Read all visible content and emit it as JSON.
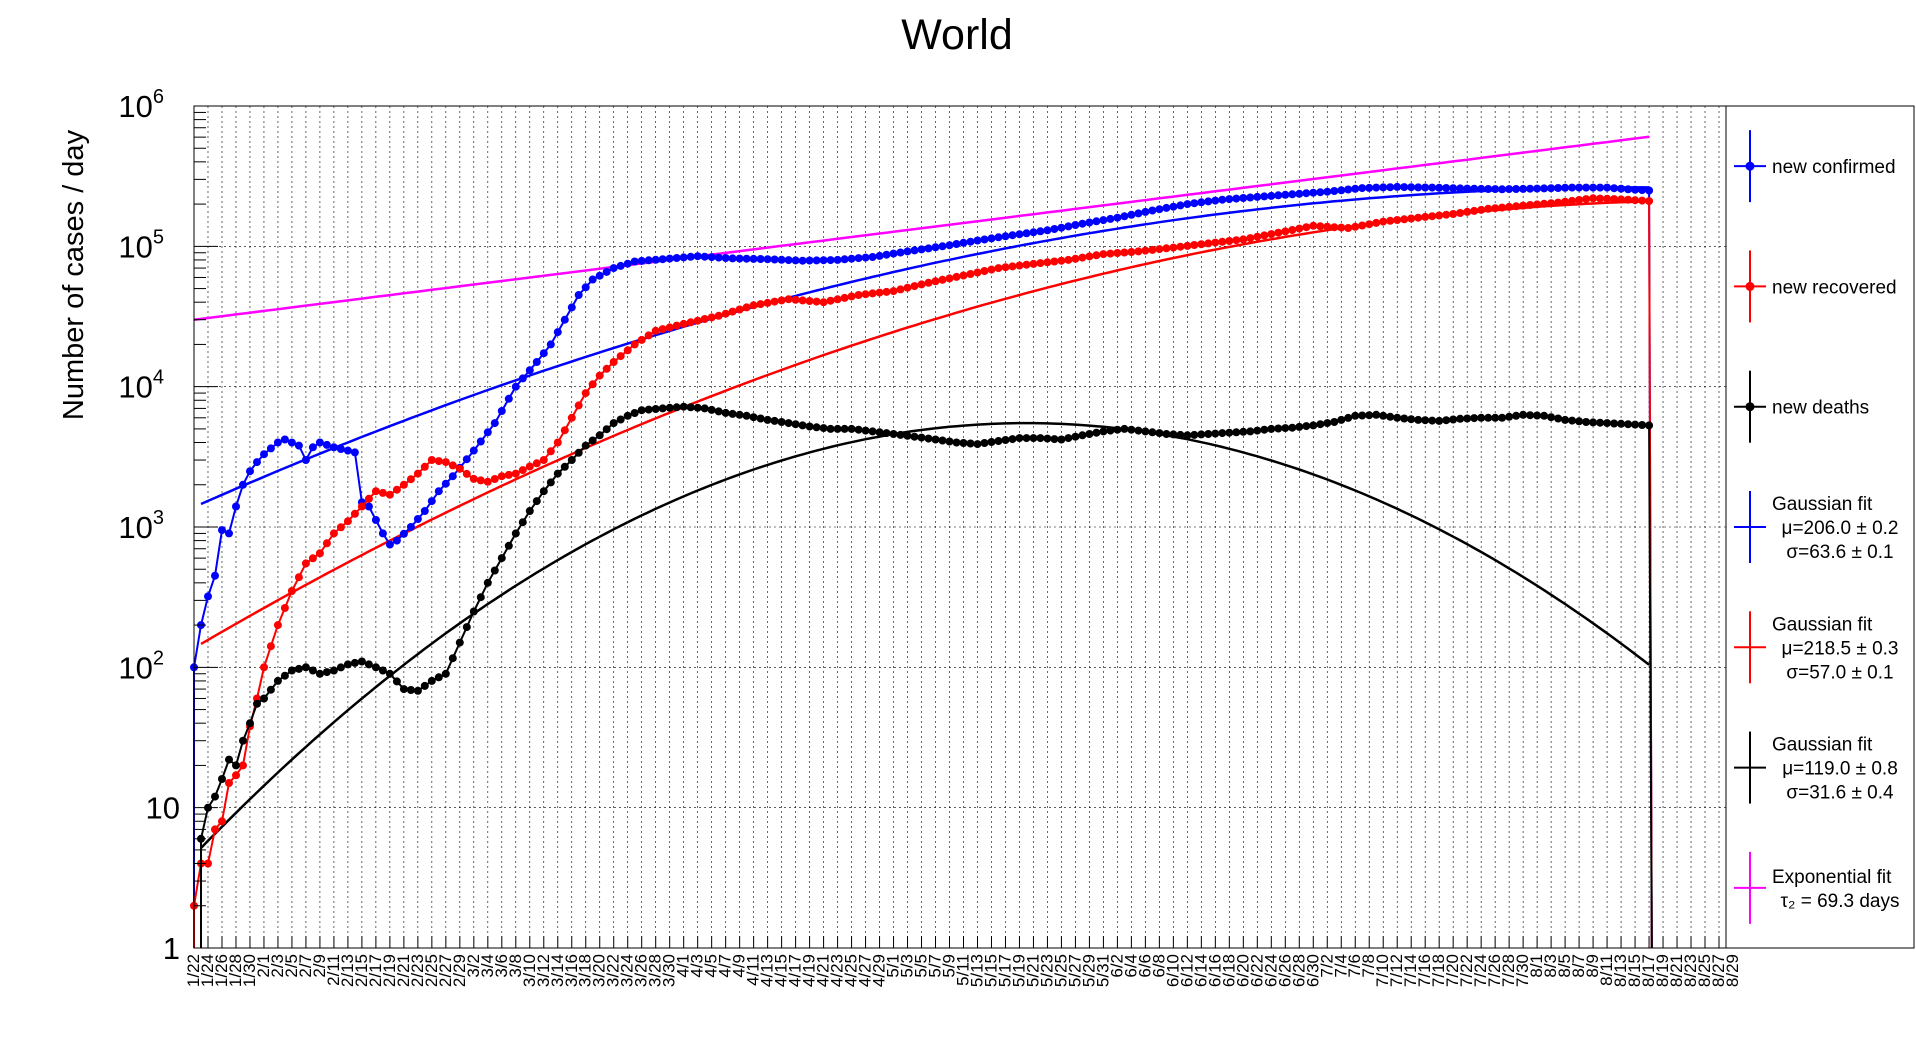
{
  "chart_data": {
    "type": "line",
    "title": "World",
    "ylabel": "Number of cases / day",
    "xlabel": "",
    "y_scale": "log",
    "ylim": [
      1,
      1000000
    ],
    "grid": true,
    "legend_position": "right",
    "y_ticks": [
      {
        "value": 1,
        "base": "1",
        "exp": ""
      },
      {
        "value": 10,
        "base": "10",
        "exp": ""
      },
      {
        "value": 100,
        "base": "10",
        "exp": "2"
      },
      {
        "value": 1000,
        "base": "10",
        "exp": "3"
      },
      {
        "value": 10000,
        "base": "10",
        "exp": "4"
      },
      {
        "value": 100000,
        "base": "10",
        "exp": "5"
      },
      {
        "value": 1000000,
        "base": "10",
        "exp": "6"
      }
    ],
    "x_tick_labels": [
      "1/22",
      "1/24",
      "1/26",
      "1/28",
      "1/30",
      "2/1",
      "2/3",
      "2/5",
      "2/7",
      "2/9",
      "2/11",
      "2/13",
      "2/15",
      "2/17",
      "2/19",
      "2/21",
      "2/23",
      "2/25",
      "2/27",
      "2/29",
      "3/2",
      "3/4",
      "3/6",
      "3/8",
      "3/10",
      "3/12",
      "3/14",
      "3/16",
      "3/18",
      "3/20",
      "3/22",
      "3/24",
      "3/26",
      "3/28",
      "3/30",
      "4/1",
      "4/3",
      "4/5",
      "4/7",
      "4/9",
      "4/11",
      "4/13",
      "4/15",
      "4/17",
      "4/19",
      "4/21",
      "4/23",
      "4/25",
      "4/27",
      "4/29",
      "5/1",
      "5/3",
      "5/5",
      "5/7",
      "5/9",
      "5/11",
      "5/13",
      "5/15",
      "5/17",
      "5/19",
      "5/21",
      "5/23",
      "5/25",
      "5/27",
      "5/29",
      "5/31",
      "6/2",
      "6/4",
      "6/6",
      "6/8",
      "6/10",
      "6/12",
      "6/14",
      "6/16",
      "6/18",
      "6/20",
      "6/22",
      "6/24",
      "6/26",
      "6/28",
      "6/30",
      "7/2",
      "7/4",
      "7/6",
      "7/8",
      "7/10",
      "7/12",
      "7/14",
      "7/16",
      "7/18",
      "7/20",
      "7/22",
      "7/24",
      "7/26",
      "7/28",
      "7/30",
      "8/1",
      "8/3",
      "8/5",
      "8/7",
      "8/9",
      "8/11",
      "8/13",
      "8/15",
      "8/17",
      "8/19",
      "8/21",
      "8/23",
      "8/25",
      "8/27",
      "8/29"
    ],
    "x_range_days": [
      0,
      219
    ],
    "series": [
      {
        "name": "new confirmed",
        "color": "#0000ff",
        "kind": "data",
        "anchors": [
          [
            0,
            100
          ],
          [
            1,
            200
          ],
          [
            2,
            320
          ],
          [
            3,
            450
          ],
          [
            4,
            950
          ],
          [
            5,
            900
          ],
          [
            6,
            1400
          ],
          [
            7,
            2000
          ],
          [
            8,
            2500
          ],
          [
            9,
            2900
          ],
          [
            10,
            3300
          ],
          [
            12,
            4000
          ],
          [
            13,
            4200
          ],
          [
            15,
            3800
          ],
          [
            16,
            3000
          ],
          [
            17,
            3700
          ],
          [
            18,
            4000
          ],
          [
            20,
            3700
          ],
          [
            22,
            3500
          ],
          [
            23,
            3400
          ],
          [
            24,
            1500
          ],
          [
            25,
            1400
          ],
          [
            27,
            900
          ],
          [
            28,
            750
          ],
          [
            29,
            800
          ],
          [
            31,
            1000
          ],
          [
            33,
            1300
          ],
          [
            35,
            1800
          ],
          [
            37,
            2300
          ],
          [
            40,
            3500
          ],
          [
            43,
            5500
          ],
          [
            46,
            10000
          ],
          [
            49,
            15000
          ],
          [
            51,
            20000
          ],
          [
            53,
            30000
          ],
          [
            55,
            45000
          ],
          [
            57,
            58000
          ],
          [
            60,
            70000
          ],
          [
            63,
            78000
          ],
          [
            67,
            81000
          ],
          [
            72,
            85000
          ],
          [
            77,
            82000
          ],
          [
            82,
            81000
          ],
          [
            87,
            79000
          ],
          [
            92,
            80000
          ],
          [
            97,
            84000
          ],
          [
            102,
            92000
          ],
          [
            107,
            100000
          ],
          [
            112,
            110000
          ],
          [
            117,
            120000
          ],
          [
            122,
            130000
          ],
          [
            127,
            145000
          ],
          [
            132,
            160000
          ],
          [
            137,
            180000
          ],
          [
            142,
            200000
          ],
          [
            147,
            215000
          ],
          [
            152,
            225000
          ],
          [
            157,
            235000
          ],
          [
            162,
            245000
          ],
          [
            167,
            260000
          ],
          [
            172,
            265000
          ],
          [
            177,
            262000
          ],
          [
            182,
            258000
          ],
          [
            187,
            255000
          ],
          [
            192,
            258000
          ],
          [
            197,
            262000
          ],
          [
            202,
            262000
          ],
          [
            205,
            255000
          ],
          [
            208,
            250000
          ]
        ]
      },
      {
        "name": "new recovered",
        "color": "#ff0000",
        "kind": "data",
        "anchors": [
          [
            0,
            2
          ],
          [
            1,
            4
          ],
          [
            2,
            4
          ],
          [
            3,
            7
          ],
          [
            4,
            8
          ],
          [
            5,
            15
          ],
          [
            6,
            17
          ],
          [
            7,
            20
          ],
          [
            8,
            38
          ],
          [
            9,
            60
          ],
          [
            10,
            100
          ],
          [
            12,
            200
          ],
          [
            14,
            350
          ],
          [
            16,
            550
          ],
          [
            18,
            650
          ],
          [
            20,
            900
          ],
          [
            22,
            1100
          ],
          [
            24,
            1400
          ],
          [
            26,
            1800
          ],
          [
            28,
            1700
          ],
          [
            30,
            2000
          ],
          [
            32,
            2400
          ],
          [
            34,
            3000
          ],
          [
            36,
            2900
          ],
          [
            38,
            2600
          ],
          [
            40,
            2200
          ],
          [
            42,
            2100
          ],
          [
            44,
            2300
          ],
          [
            46,
            2400
          ],
          [
            48,
            2700
          ],
          [
            50,
            3000
          ],
          [
            52,
            4000
          ],
          [
            54,
            6000
          ],
          [
            56,
            9000
          ],
          [
            58,
            12000
          ],
          [
            60,
            15000
          ],
          [
            63,
            20000
          ],
          [
            66,
            25000
          ],
          [
            70,
            28000
          ],
          [
            75,
            32000
          ],
          [
            80,
            38000
          ],
          [
            85,
            42000
          ],
          [
            90,
            40000
          ],
          [
            95,
            45000
          ],
          [
            100,
            48000
          ],
          [
            105,
            55000
          ],
          [
            110,
            62000
          ],
          [
            115,
            70000
          ],
          [
            120,
            75000
          ],
          [
            125,
            80000
          ],
          [
            130,
            88000
          ],
          [
            135,
            92000
          ],
          [
            140,
            98000
          ],
          [
            145,
            105000
          ],
          [
            150,
            112000
          ],
          [
            155,
            125000
          ],
          [
            160,
            140000
          ],
          [
            165,
            135000
          ],
          [
            170,
            150000
          ],
          [
            175,
            160000
          ],
          [
            180,
            170000
          ],
          [
            185,
            185000
          ],
          [
            190,
            195000
          ],
          [
            195,
            205000
          ],
          [
            200,
            220000
          ],
          [
            205,
            215000
          ],
          [
            208,
            210000
          ]
        ]
      },
      {
        "name": "new deaths",
        "color": "#000000",
        "kind": "data",
        "anchors": [
          [
            1,
            6
          ],
          [
            2,
            10
          ],
          [
            3,
            12
          ],
          [
            4,
            16
          ],
          [
            5,
            22
          ],
          [
            6,
            20
          ],
          [
            7,
            30
          ],
          [
            8,
            40
          ],
          [
            9,
            55
          ],
          [
            10,
            60
          ],
          [
            12,
            80
          ],
          [
            14,
            95
          ],
          [
            16,
            100
          ],
          [
            18,
            90
          ],
          [
            20,
            95
          ],
          [
            22,
            105
          ],
          [
            24,
            110
          ],
          [
            26,
            100
          ],
          [
            28,
            90
          ],
          [
            30,
            70
          ],
          [
            32,
            68
          ],
          [
            34,
            80
          ],
          [
            36,
            90
          ],
          [
            38,
            150
          ],
          [
            40,
            250
          ],
          [
            42,
            400
          ],
          [
            44,
            600
          ],
          [
            46,
            900
          ],
          [
            48,
            1300
          ],
          [
            50,
            1800
          ],
          [
            52,
            2400
          ],
          [
            54,
            3000
          ],
          [
            56,
            3800
          ],
          [
            58,
            4500
          ],
          [
            60,
            5500
          ],
          [
            62,
            6200
          ],
          [
            64,
            6800
          ],
          [
            67,
            7000
          ],
          [
            70,
            7200
          ],
          [
            73,
            7000
          ],
          [
            76,
            6500
          ],
          [
            79,
            6200
          ],
          [
            82,
            5800
          ],
          [
            85,
            5500
          ],
          [
            88,
            5200
          ],
          [
            91,
            5000
          ],
          [
            94,
            5000
          ],
          [
            97,
            4800
          ],
          [
            100,
            4600
          ],
          [
            103,
            4400
          ],
          [
            106,
            4200
          ],
          [
            109,
            4000
          ],
          [
            112,
            3900
          ],
          [
            115,
            4100
          ],
          [
            118,
            4300
          ],
          [
            121,
            4300
          ],
          [
            124,
            4200
          ],
          [
            127,
            4500
          ],
          [
            130,
            4800
          ],
          [
            133,
            5000
          ],
          [
            136,
            4800
          ],
          [
            139,
            4600
          ],
          [
            142,
            4500
          ],
          [
            145,
            4600
          ],
          [
            148,
            4700
          ],
          [
            151,
            4800
          ],
          [
            154,
            5000
          ],
          [
            157,
            5100
          ],
          [
            160,
            5300
          ],
          [
            163,
            5600
          ],
          [
            166,
            6200
          ],
          [
            169,
            6300
          ],
          [
            172,
            6000
          ],
          [
            175,
            5800
          ],
          [
            178,
            5700
          ],
          [
            181,
            5900
          ],
          [
            184,
            6000
          ],
          [
            187,
            6000
          ],
          [
            190,
            6300
          ],
          [
            193,
            6200
          ],
          [
            196,
            5800
          ],
          [
            199,
            5600
          ],
          [
            202,
            5500
          ],
          [
            205,
            5400
          ],
          [
            208,
            5300
          ]
        ]
      },
      {
        "name": "Gaussian fit confirmed",
        "color": "#0000ff",
        "kind": "gauss",
        "mu": 206.0,
        "sigma": 63.6,
        "peak": 263000
      },
      {
        "name": "Gaussian fit recovered",
        "color": "#ff0000",
        "kind": "gauss",
        "mu": 218.5,
        "sigma": 57.0,
        "peak": 213000
      },
      {
        "name": "Gaussian fit deaths",
        "color": "#000000",
        "kind": "gauss",
        "mu": 119.0,
        "sigma": 31.6,
        "peak": 5500
      },
      {
        "name": "Exponential fit",
        "color": "#ff00ff",
        "kind": "exp",
        "tau": 69.3,
        "value_at_start": 30000
      }
    ],
    "legend": [
      {
        "color": "#0000ff",
        "marker": true,
        "lines": [
          "new confirmed"
        ]
      },
      {
        "color": "#ff0000",
        "marker": true,
        "lines": [
          "new recovered"
        ]
      },
      {
        "color": "#000000",
        "marker": true,
        "lines": [
          "new deaths"
        ]
      },
      {
        "color": "#0000ff",
        "marker": false,
        "lines": [
          "Gaussian fit",
          "μ=206.0 ± 0.2",
          "σ=63.6 ± 0.1"
        ]
      },
      {
        "color": "#ff0000",
        "marker": false,
        "lines": [
          "Gaussian fit",
          "μ=218.5 ± 0.3",
          "σ=57.0 ± 0.1"
        ]
      },
      {
        "color": "#000000",
        "marker": false,
        "lines": [
          "Gaussian fit",
          "μ=119.0 ± 0.8",
          "σ=31.6 ± 0.4"
        ]
      },
      {
        "color": "#ff00ff",
        "marker": false,
        "lines": [
          "Exponential fit",
          "τ₂ = 69.3 days"
        ]
      }
    ]
  }
}
